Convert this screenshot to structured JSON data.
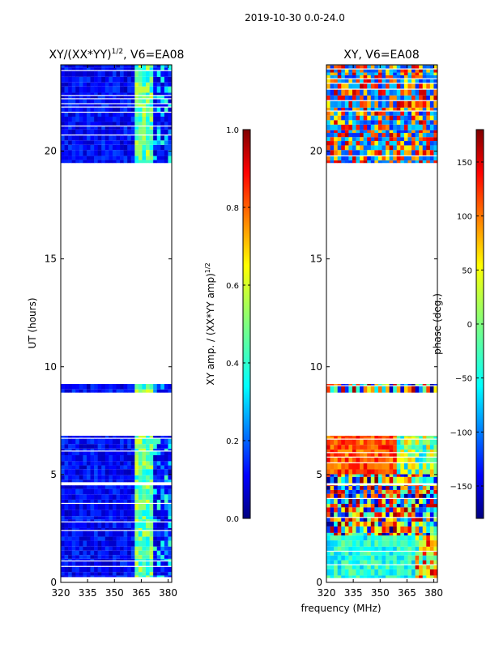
{
  "figure": {
    "suptitle": "2019-10-30 0.0-24.0",
    "shared_xlabel": "frequency (MHz)"
  },
  "colors": {
    "jet": [
      "#00007f",
      "#0000ff",
      "#007fff",
      "#00ffff",
      "#7fff7f",
      "#ffff00",
      "#ff7f00",
      "#ff0000",
      "#7f0000"
    ]
  },
  "chart_data": [
    {
      "type": "heatmap",
      "name": "amplitude-ratio",
      "title_main": "XY/(XX*YY)",
      "title_exp": "1/2",
      "title_suffix": ", V6=EA08",
      "xlabel": "",
      "ylabel": "UT (hours)",
      "xlim": [
        320,
        382
      ],
      "ylim": [
        0,
        24
      ],
      "xticks": [
        320,
        335,
        350,
        365,
        380
      ],
      "yticks": [
        0,
        5,
        10,
        15,
        20
      ],
      "data_blocks_hours": [
        [
          0.2,
          4.5
        ],
        [
          4.6,
          6.8
        ],
        [
          8.8,
          9.2
        ],
        [
          19.4,
          24.0
        ]
      ],
      "colorbar": {
        "label_main": "XY amp. / (XX*YY amp)",
        "label_exp": "1/2",
        "range": [
          0.0,
          1.0
        ],
        "ticks": [
          0.0,
          0.2,
          0.4,
          0.6,
          0.8,
          1.0
        ],
        "tick_labels": [
          "0.0",
          "0.2",
          "0.4",
          "0.6",
          "0.8",
          "1.0"
        ]
      }
    },
    {
      "type": "heatmap",
      "name": "phase",
      "title": "XY, V6=EA08",
      "xlabel": "",
      "ylabel": "",
      "xlim": [
        320,
        382
      ],
      "ylim": [
        0,
        24
      ],
      "xticks": [
        320,
        335,
        350,
        365,
        380
      ],
      "yticks": [
        0,
        5,
        10,
        15,
        20
      ],
      "data_blocks_hours": [
        [
          0.2,
          4.5
        ],
        [
          4.6,
          6.8
        ],
        [
          8.8,
          9.2
        ],
        [
          19.4,
          24.0
        ]
      ],
      "colorbar": {
        "label": "phase (deg.)",
        "range": [
          -180,
          180
        ],
        "ticks": [
          -150,
          -100,
          -50,
          0,
          50,
          100,
          150
        ],
        "tick_labels": [
          "−150",
          "−100",
          "−50",
          "0",
          "50",
          "100",
          "150"
        ]
      }
    }
  ]
}
